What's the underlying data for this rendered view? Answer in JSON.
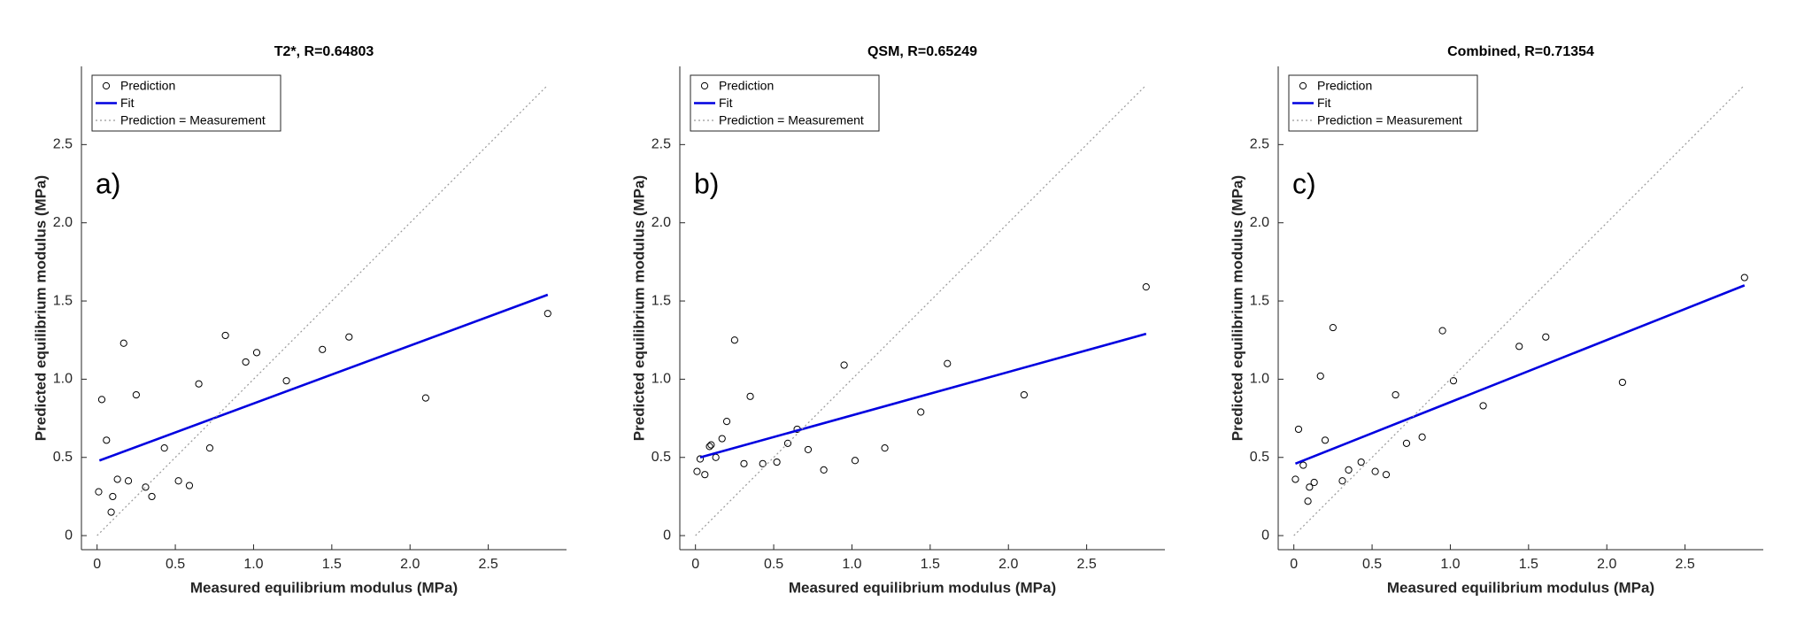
{
  "chart_data": [
    {
      "type": "scatter",
      "title": "T2*, R=0.64803",
      "panel_label": "a)",
      "xlabel": "Measured equilibrium modulus (MPa)",
      "ylabel": "Predicted equilibrium modulus (MPa)",
      "xlim": [
        -0.1,
        3.0
      ],
      "ylim": [
        -0.09,
        3.0
      ],
      "xticks": [
        0,
        0.5,
        {
          "value": 1,
          "label": "1.0"
        },
        1.5,
        {
          "value": 2,
          "label": "2.0"
        },
        2.5
      ],
      "yticks": [
        0,
        0.5,
        {
          "value": 1,
          "label": "1.0"
        },
        1.5,
        {
          "value": 2,
          "label": "2.0"
        },
        2.5
      ],
      "series": [
        {
          "name": "Prediction",
          "style": "circle",
          "color": "#000000",
          "x": [
            0.01,
            0.03,
            0.06,
            0.09,
            0.1,
            0.13,
            0.17,
            0.2,
            0.25,
            0.31,
            0.35,
            0.43,
            0.52,
            0.59,
            0.65,
            0.72,
            0.82,
            0.95,
            1.02,
            1.21,
            1.44,
            1.61,
            2.1,
            2.88
          ],
          "values": [
            0.28,
            0.87,
            0.61,
            0.15,
            0.25,
            0.36,
            1.23,
            0.35,
            0.9,
            0.31,
            0.25,
            0.56,
            0.35,
            0.32,
            0.97,
            0.56,
            1.28,
            1.11,
            1.17,
            0.99,
            1.19,
            1.27,
            0.88,
            1.42
          ]
        },
        {
          "name": "Fit",
          "style": "solid",
          "color": "#0000e0",
          "x": [
            0.015,
            2.88
          ],
          "values": [
            0.48,
            1.54
          ]
        },
        {
          "name": "Prediction = Measurement",
          "style": "dotted",
          "color": "#999999",
          "x": [
            0,
            2.88
          ],
          "values": [
            0,
            2.88
          ]
        }
      ]
    },
    {
      "type": "scatter",
      "title": "QSM, R=0.65249",
      "panel_label": "b)",
      "xlabel": "Measured equilibrium modulus (MPa)",
      "ylabel": "Predicted equilibrium modulus (MPa)",
      "xlim": [
        -0.1,
        3.0
      ],
      "ylim": [
        -0.09,
        3.0
      ],
      "xticks": [
        0,
        0.5,
        {
          "value": 1,
          "label": "1.0"
        },
        1.5,
        {
          "value": 2,
          "label": "2.0"
        },
        2.5
      ],
      "yticks": [
        0,
        0.5,
        {
          "value": 1,
          "label": "1.0"
        },
        1.5,
        {
          "value": 2,
          "label": "2.0"
        },
        2.5
      ],
      "series": [
        {
          "name": "Prediction",
          "style": "circle",
          "color": "#000000",
          "x": [
            0.01,
            0.03,
            0.06,
            0.09,
            0.1,
            0.13,
            0.17,
            0.2,
            0.25,
            0.31,
            0.35,
            0.43,
            0.52,
            0.59,
            0.65,
            0.72,
            0.82,
            0.95,
            1.02,
            1.21,
            1.44,
            1.61,
            2.1,
            2.88
          ],
          "values": [
            0.41,
            0.49,
            0.39,
            0.57,
            0.58,
            0.5,
            0.62,
            0.73,
            1.25,
            0.46,
            0.89,
            0.46,
            0.47,
            0.59,
            0.68,
            0.55,
            0.42,
            1.09,
            0.48,
            0.56,
            0.79,
            1.1,
            0.9,
            1.59
          ]
        },
        {
          "name": "Fit",
          "style": "solid",
          "color": "#0000e0",
          "x": [
            0.03,
            2.88
          ],
          "values": [
            0.5,
            1.29
          ]
        },
        {
          "name": "Prediction = Measurement",
          "style": "dotted",
          "color": "#999999",
          "x": [
            0,
            2.88
          ],
          "values": [
            0,
            2.88
          ]
        }
      ]
    },
    {
      "type": "scatter",
      "title": "Combined, R=0.71354",
      "panel_label": "c)",
      "xlabel": "Measured equilibrium modulus (MPa)",
      "ylabel": "Predicted equilibrium modulus (MPa)",
      "xlim": [
        -0.1,
        3.0
      ],
      "ylim": [
        -0.09,
        3.0
      ],
      "xticks": [
        0,
        0.5,
        {
          "value": 1,
          "label": "1.0"
        },
        1.5,
        {
          "value": 2,
          "label": "2.0"
        },
        2.5
      ],
      "yticks": [
        0,
        0.5,
        {
          "value": 1,
          "label": "1.0"
        },
        1.5,
        {
          "value": 2,
          "label": "2.0"
        },
        2.5
      ],
      "series": [
        {
          "name": "Prediction",
          "style": "circle",
          "color": "#000000",
          "x": [
            0.01,
            0.03,
            0.06,
            0.09,
            0.1,
            0.13,
            0.17,
            0.2,
            0.25,
            0.31,
            0.35,
            0.43,
            0.52,
            0.59,
            0.65,
            0.72,
            0.82,
            0.95,
            1.02,
            1.21,
            1.44,
            1.61,
            2.1,
            2.88
          ],
          "values": [
            0.36,
            0.68,
            0.45,
            0.22,
            0.31,
            0.34,
            1.02,
            0.61,
            1.33,
            0.35,
            0.42,
            0.47,
            0.41,
            0.39,
            0.9,
            0.59,
            0.63,
            1.31,
            0.99,
            0.83,
            1.21,
            1.27,
            0.98,
            1.65
          ]
        },
        {
          "name": "Fit",
          "style": "solid",
          "color": "#0000e0",
          "x": [
            0.01,
            2.88
          ],
          "values": [
            0.46,
            1.6
          ]
        },
        {
          "name": "Prediction = Measurement",
          "style": "dotted",
          "color": "#999999",
          "x": [
            0,
            2.88
          ],
          "values": [
            0,
            2.88
          ]
        }
      ]
    }
  ]
}
